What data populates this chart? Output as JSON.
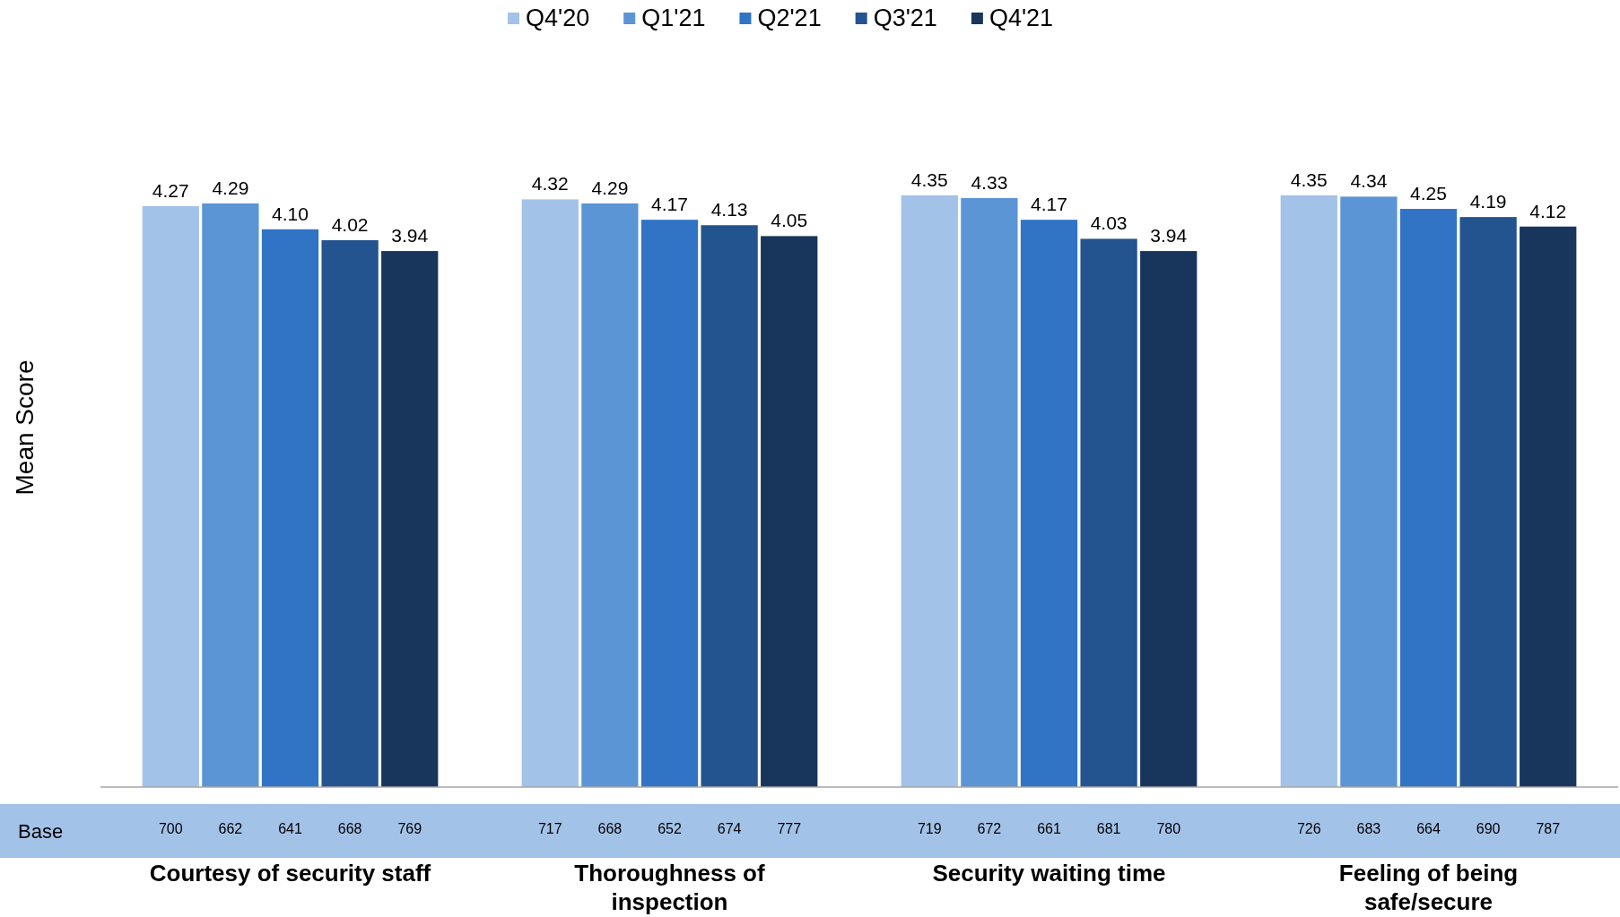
{
  "chart_data": {
    "type": "bar",
    "ylabel": "Mean Score",
    "legend": "top",
    "categories": [
      "Courtesy of security staff",
      "Thoroughness of inspection",
      "Security waiting time",
      "Feeling of being safe/secure"
    ],
    "series": [
      {
        "name": "Q4'20",
        "color": "#a3c2e8",
        "values": [
          4.27,
          4.32,
          4.35,
          4.35
        ],
        "value_labels": [
          "4.27",
          "4.32",
          "4.35",
          "4.35"
        ]
      },
      {
        "name": "Q1'21",
        "color": "#5b95d6",
        "values": [
          4.29,
          4.29,
          4.33,
          4.34
        ],
        "value_labels": [
          "4.29",
          "4.29",
          "4.33",
          "4.34"
        ]
      },
      {
        "name": "Q2'21",
        "color": "#3174c6",
        "values": [
          4.1,
          4.17,
          4.17,
          4.25
        ],
        "value_labels": [
          "4.10",
          "4.17",
          "4.17",
          "4.25"
        ]
      },
      {
        "name": "Q3'21",
        "color": "#23548f",
        "values": [
          4.02,
          4.13,
          4.03,
          4.19
        ],
        "value_labels": [
          "4.02",
          "4.13",
          "4.03",
          "4.19"
        ]
      },
      {
        "name": "Q4'21",
        "color": "#18365c",
        "values": [
          3.94,
          4.05,
          3.94,
          4.12
        ],
        "value_labels": [
          "3.94",
          "4.05",
          "3.94",
          "4.12"
        ]
      }
    ],
    "annotations": [
      "Base",
      "700",
      "662",
      "641",
      "668",
      "769",
      "717",
      "668",
      "652",
      "674",
      "777",
      "719",
      "672",
      "661",
      "681",
      "780",
      "726",
      "683",
      "664",
      "690",
      "787"
    ]
  }
}
